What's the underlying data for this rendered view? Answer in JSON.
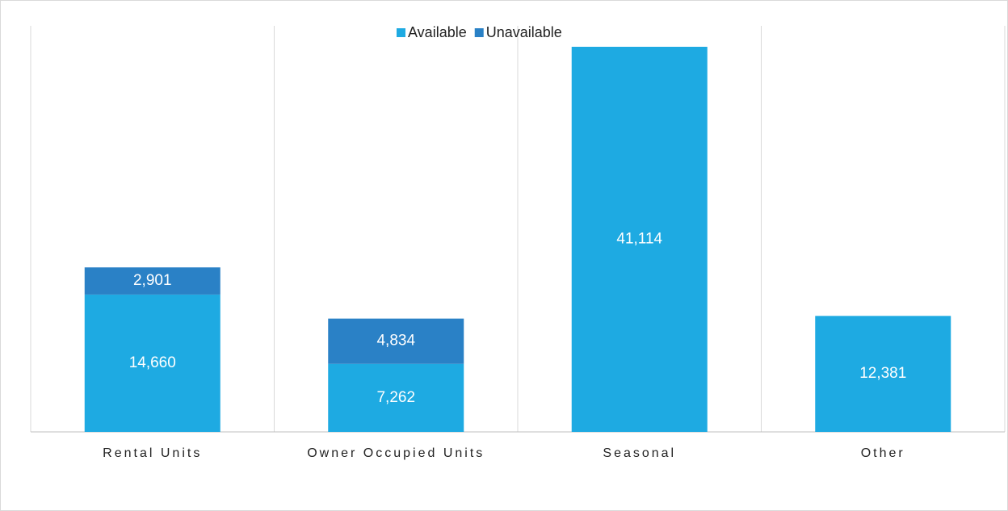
{
  "chart_data": {
    "type": "stacked_bar",
    "categories": [
      "Rental Units",
      "Owner Occupied Units",
      "Seasonal",
      "Other"
    ],
    "series": [
      {
        "name": "Available",
        "color": "#1eaae2",
        "values": [
          14660,
          7262,
          41114,
          12381
        ],
        "value_labels": [
          "14,660",
          "7,262",
          "41,114",
          "12,381"
        ]
      },
      {
        "name": "Unavailable",
        "color": "#2a81c6",
        "values": [
          2901,
          4834,
          null,
          null
        ],
        "value_labels": [
          "2,901",
          "4,834",
          null,
          null
        ]
      }
    ],
    "ylim": [
      0,
      43350
    ],
    "legend": "top"
  }
}
